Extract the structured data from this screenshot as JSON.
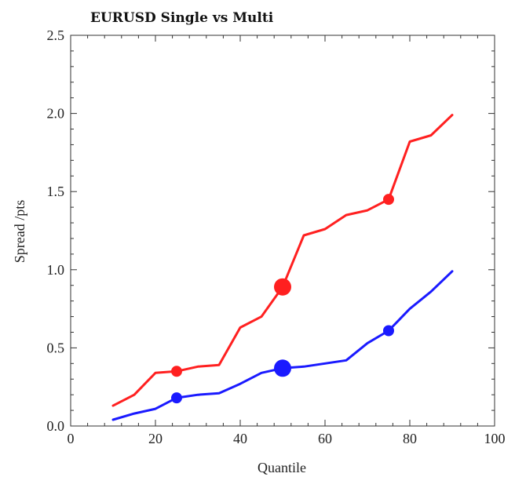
{
  "chart_data": {
    "type": "line",
    "title": "EURUSD Single vs Multi",
    "xlabel": "Quantile",
    "ylabel": "Spread /pts",
    "xlim": [
      0,
      100
    ],
    "ylim": [
      0,
      2.5
    ],
    "xticks": [
      0,
      20,
      40,
      60,
      80,
      100
    ],
    "yticks": [
      "0.0",
      "0.5",
      "1.0",
      "1.5",
      "2.0",
      "2.5"
    ],
    "grid": false,
    "series": [
      {
        "color": "#ff2020",
        "x": [
          10,
          15,
          20,
          25,
          30,
          35,
          40,
          45,
          50,
          55,
          60,
          65,
          70,
          75,
          80,
          85,
          90
        ],
        "y": [
          0.13,
          0.2,
          0.34,
          0.35,
          0.38,
          0.39,
          0.63,
          0.7,
          0.89,
          1.22,
          1.26,
          1.35,
          1.38,
          1.45,
          1.82,
          1.86,
          1.99
        ],
        "markers": [
          {
            "x": 25,
            "y": 0.35,
            "size": "small"
          },
          {
            "x": 50,
            "y": 0.89,
            "size": "large"
          },
          {
            "x": 75,
            "y": 1.45,
            "size": "small"
          }
        ]
      },
      {
        "color": "#1a1aff",
        "x": [
          10,
          15,
          20,
          25,
          30,
          35,
          40,
          45,
          50,
          55,
          60,
          65,
          70,
          75,
          80,
          85,
          90
        ],
        "y": [
          0.04,
          0.08,
          0.11,
          0.18,
          0.2,
          0.21,
          0.27,
          0.34,
          0.37,
          0.38,
          0.4,
          0.42,
          0.53,
          0.61,
          0.75,
          0.86,
          0.99
        ],
        "markers": [
          {
            "x": 25,
            "y": 0.18,
            "size": "small"
          },
          {
            "x": 50,
            "y": 0.37,
            "size": "large"
          },
          {
            "x": 75,
            "y": 0.61,
            "size": "small"
          }
        ]
      }
    ]
  }
}
